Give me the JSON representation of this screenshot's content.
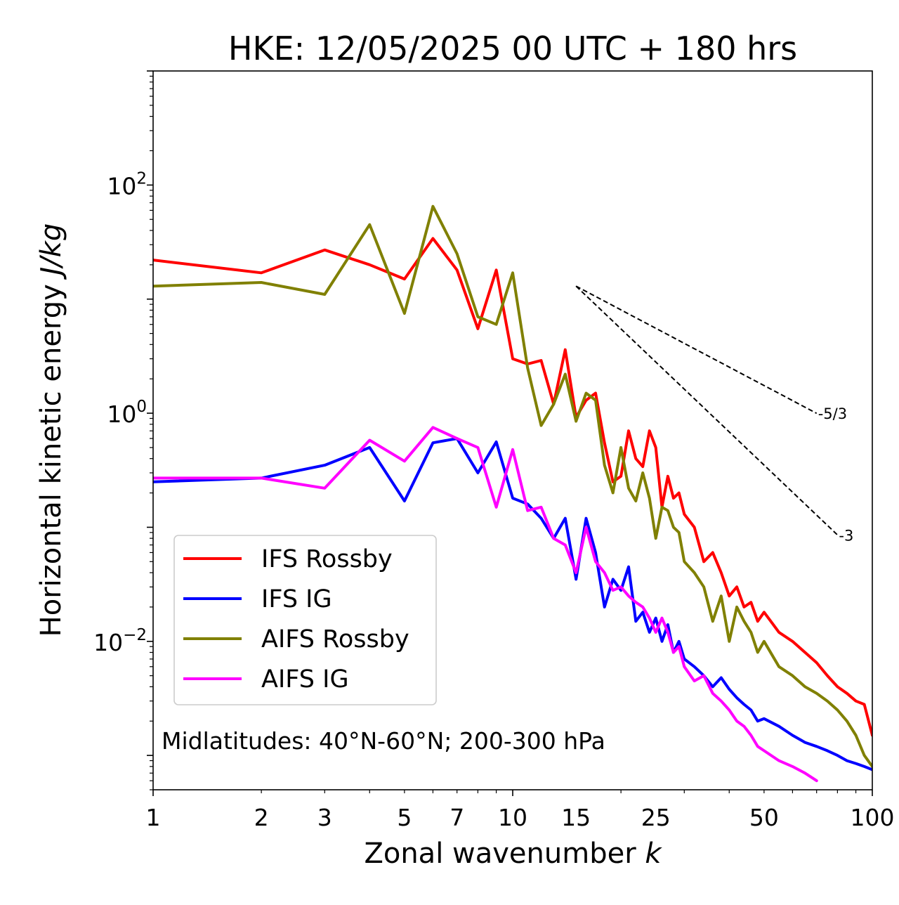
{
  "chart_data": {
    "type": "line",
    "title": "HKE: 12/05/2025 00 UTC + 180 hrs",
    "xlabel": "Zonal wavenumber",
    "xlabel_symbol": "k",
    "ylabel": "Horizontal kinetic energy",
    "ylabel_units": "J/kg",
    "xscale": "log",
    "yscale": "log",
    "xlim": [
      1,
      100
    ],
    "ylim": [
      0.0005,
      1000
    ],
    "x_ticks": [
      1,
      2,
      3,
      5,
      7,
      10,
      15,
      25,
      50,
      100
    ],
    "x_tick_labels": [
      "1",
      "2",
      "3",
      "5",
      "7",
      "10",
      "15",
      "25",
      "50",
      "100"
    ],
    "y_ticks": [
      0.01,
      1,
      100
    ],
    "y_tick_labels": [
      {
        "base": "10",
        "exp": "−2"
      },
      {
        "base": "10",
        "exp": "0"
      },
      {
        "base": "10",
        "exp": "2"
      }
    ],
    "grid": false,
    "legend_position": "lower-left",
    "annotation": "Midlatitudes: 40°N-60°N; 200-300 hPa",
    "reference_lines": [
      {
        "label": "-5/3",
        "slope": -1.6667,
        "x": [
          15,
          70
        ],
        "y0": 13
      },
      {
        "label": "-3",
        "slope": -3,
        "x": [
          15,
          80
        ],
        "y0": 13
      }
    ],
    "series": [
      {
        "name": "IFS Rossby",
        "color": "#ff0000",
        "x": [
          1,
          2,
          3,
          4,
          5,
          6,
          7,
          8,
          9,
          10,
          11,
          12,
          13,
          14,
          15,
          16,
          17,
          18,
          19,
          20,
          21,
          22,
          23,
          24,
          25,
          26,
          27,
          28,
          29,
          30,
          32,
          34,
          36,
          38,
          40,
          42,
          44,
          46,
          48,
          50,
          55,
          60,
          65,
          70,
          75,
          80,
          85,
          90,
          95,
          100
        ],
        "values": [
          22,
          17,
          27,
          20,
          15,
          34,
          18,
          5.5,
          18,
          3.0,
          2.7,
          2.9,
          1.2,
          3.6,
          0.92,
          1.3,
          1.5,
          0.55,
          0.25,
          0.28,
          0.7,
          0.4,
          0.34,
          0.7,
          0.5,
          0.15,
          0.28,
          0.18,
          0.2,
          0.13,
          0.1,
          0.05,
          0.06,
          0.04,
          0.025,
          0.03,
          0.02,
          0.022,
          0.015,
          0.018,
          0.012,
          0.01,
          0.008,
          0.0065,
          0.005,
          0.004,
          0.0035,
          0.003,
          0.0028,
          0.0015
        ]
      },
      {
        "name": "IFS IG",
        "color": "#0000ff",
        "x": [
          1,
          2,
          3,
          4,
          5,
          6,
          7,
          8,
          9,
          10,
          11,
          12,
          13,
          14,
          15,
          16,
          17,
          18,
          19,
          20,
          21,
          22,
          23,
          24,
          25,
          26,
          27,
          28,
          29,
          30,
          32,
          34,
          36,
          38,
          40,
          42,
          44,
          46,
          48,
          50,
          55,
          60,
          65,
          70,
          75,
          80,
          85,
          90,
          95,
          100
        ],
        "values": [
          0.25,
          0.27,
          0.35,
          0.5,
          0.17,
          0.55,
          0.6,
          0.3,
          0.56,
          0.18,
          0.16,
          0.12,
          0.08,
          0.12,
          0.035,
          0.12,
          0.06,
          0.02,
          0.035,
          0.028,
          0.045,
          0.015,
          0.018,
          0.012,
          0.016,
          0.01,
          0.014,
          0.008,
          0.01,
          0.007,
          0.006,
          0.005,
          0.004,
          0.0048,
          0.0038,
          0.0032,
          0.0028,
          0.0025,
          0.002,
          0.0021,
          0.0018,
          0.0015,
          0.0013,
          0.0012,
          0.0011,
          0.001,
          0.0009,
          0.00085,
          0.0008,
          0.00075
        ]
      },
      {
        "name": "AIFS Rossby",
        "color": "#808000",
        "x": [
          1,
          2,
          3,
          4,
          5,
          6,
          7,
          8,
          9,
          10,
          11,
          12,
          13,
          14,
          15,
          16,
          17,
          18,
          19,
          20,
          21,
          22,
          23,
          24,
          25,
          26,
          27,
          28,
          29,
          30,
          32,
          34,
          36,
          38,
          40,
          42,
          44,
          46,
          48,
          50,
          55,
          60,
          65,
          70,
          75,
          80,
          85,
          90,
          95,
          100
        ],
        "values": [
          13,
          14,
          11,
          45,
          7.5,
          65,
          25,
          7,
          6,
          17,
          2.5,
          0.78,
          1.2,
          2.2,
          0.85,
          1.5,
          1.3,
          0.35,
          0.2,
          0.5,
          0.22,
          0.17,
          0.3,
          0.18,
          0.08,
          0.15,
          0.14,
          0.1,
          0.09,
          0.05,
          0.04,
          0.03,
          0.015,
          0.025,
          0.01,
          0.02,
          0.015,
          0.012,
          0.008,
          0.01,
          0.006,
          0.005,
          0.004,
          0.0035,
          0.003,
          0.0025,
          0.002,
          0.0015,
          0.001,
          0.0008
        ]
      },
      {
        "name": "AIFS IG",
        "color": "#ff00ff",
        "x": [
          1,
          2,
          3,
          4,
          5,
          6,
          7,
          8,
          9,
          10,
          11,
          12,
          13,
          14,
          15,
          16,
          17,
          18,
          19,
          20,
          21,
          22,
          23,
          24,
          25,
          26,
          27,
          28,
          29,
          30,
          32,
          34,
          36,
          38,
          40,
          42,
          44,
          46,
          48,
          50,
          55,
          60,
          65,
          70
        ],
        "values": [
          0.27,
          0.27,
          0.22,
          0.58,
          0.38,
          0.75,
          0.6,
          0.5,
          0.15,
          0.48,
          0.14,
          0.15,
          0.08,
          0.07,
          0.04,
          0.1,
          0.05,
          0.04,
          0.028,
          0.03,
          0.025,
          0.022,
          0.02,
          0.016,
          0.012,
          0.016,
          0.012,
          0.008,
          0.009,
          0.006,
          0.0045,
          0.005,
          0.0035,
          0.003,
          0.0025,
          0.002,
          0.0018,
          0.0015,
          0.0012,
          0.0011,
          0.0009,
          0.0008,
          0.0007,
          0.0006
        ]
      }
    ]
  }
}
